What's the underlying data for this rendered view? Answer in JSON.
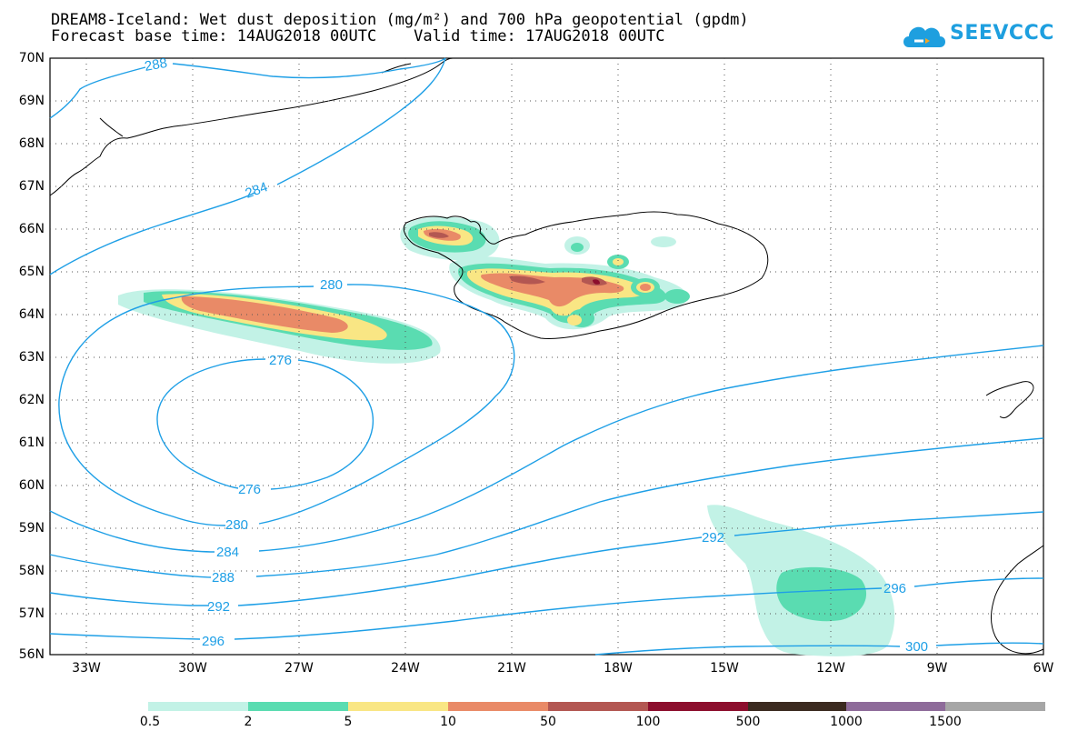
{
  "header": {
    "title_line1": "DREAM8-Iceland: Wet dust deposition (mg/m²) and 700 hPa geopotential (gpdm)",
    "title_line2": "Forecast base time: 14AUG2018 00UTC    Valid time: 17AUG2018 00UTC",
    "logo_text": "SEEVCCC"
  },
  "map": {
    "lat_labels": [
      "70N",
      "69N",
      "68N",
      "67N",
      "66N",
      "65N",
      "64N",
      "63N",
      "62N",
      "61N",
      "60N",
      "59N",
      "58N",
      "57N",
      "56N"
    ],
    "lon_labels": [
      "33W",
      "30W",
      "27W",
      "24W",
      "21W",
      "18W",
      "15W",
      "12W",
      "9W",
      "6W"
    ],
    "contour_labels": [
      "288",
      "284",
      "280",
      "276",
      "276",
      "280",
      "284",
      "288",
      "292",
      "296",
      "292",
      "296",
      "300"
    ],
    "contour_color": "#1e9fe6"
  },
  "colorbar": {
    "labels": [
      "0.5",
      "2",
      "5",
      "10",
      "50",
      "100",
      "500",
      "1000",
      "1500"
    ],
    "colors": [
      "#c2f2e6",
      "#5adcb1",
      "#f9e684",
      "#e98a67",
      "#b35752",
      "#8c0e2d",
      "#3b2a20",
      "#8e6b9a",
      "#a6a6a6"
    ]
  }
}
